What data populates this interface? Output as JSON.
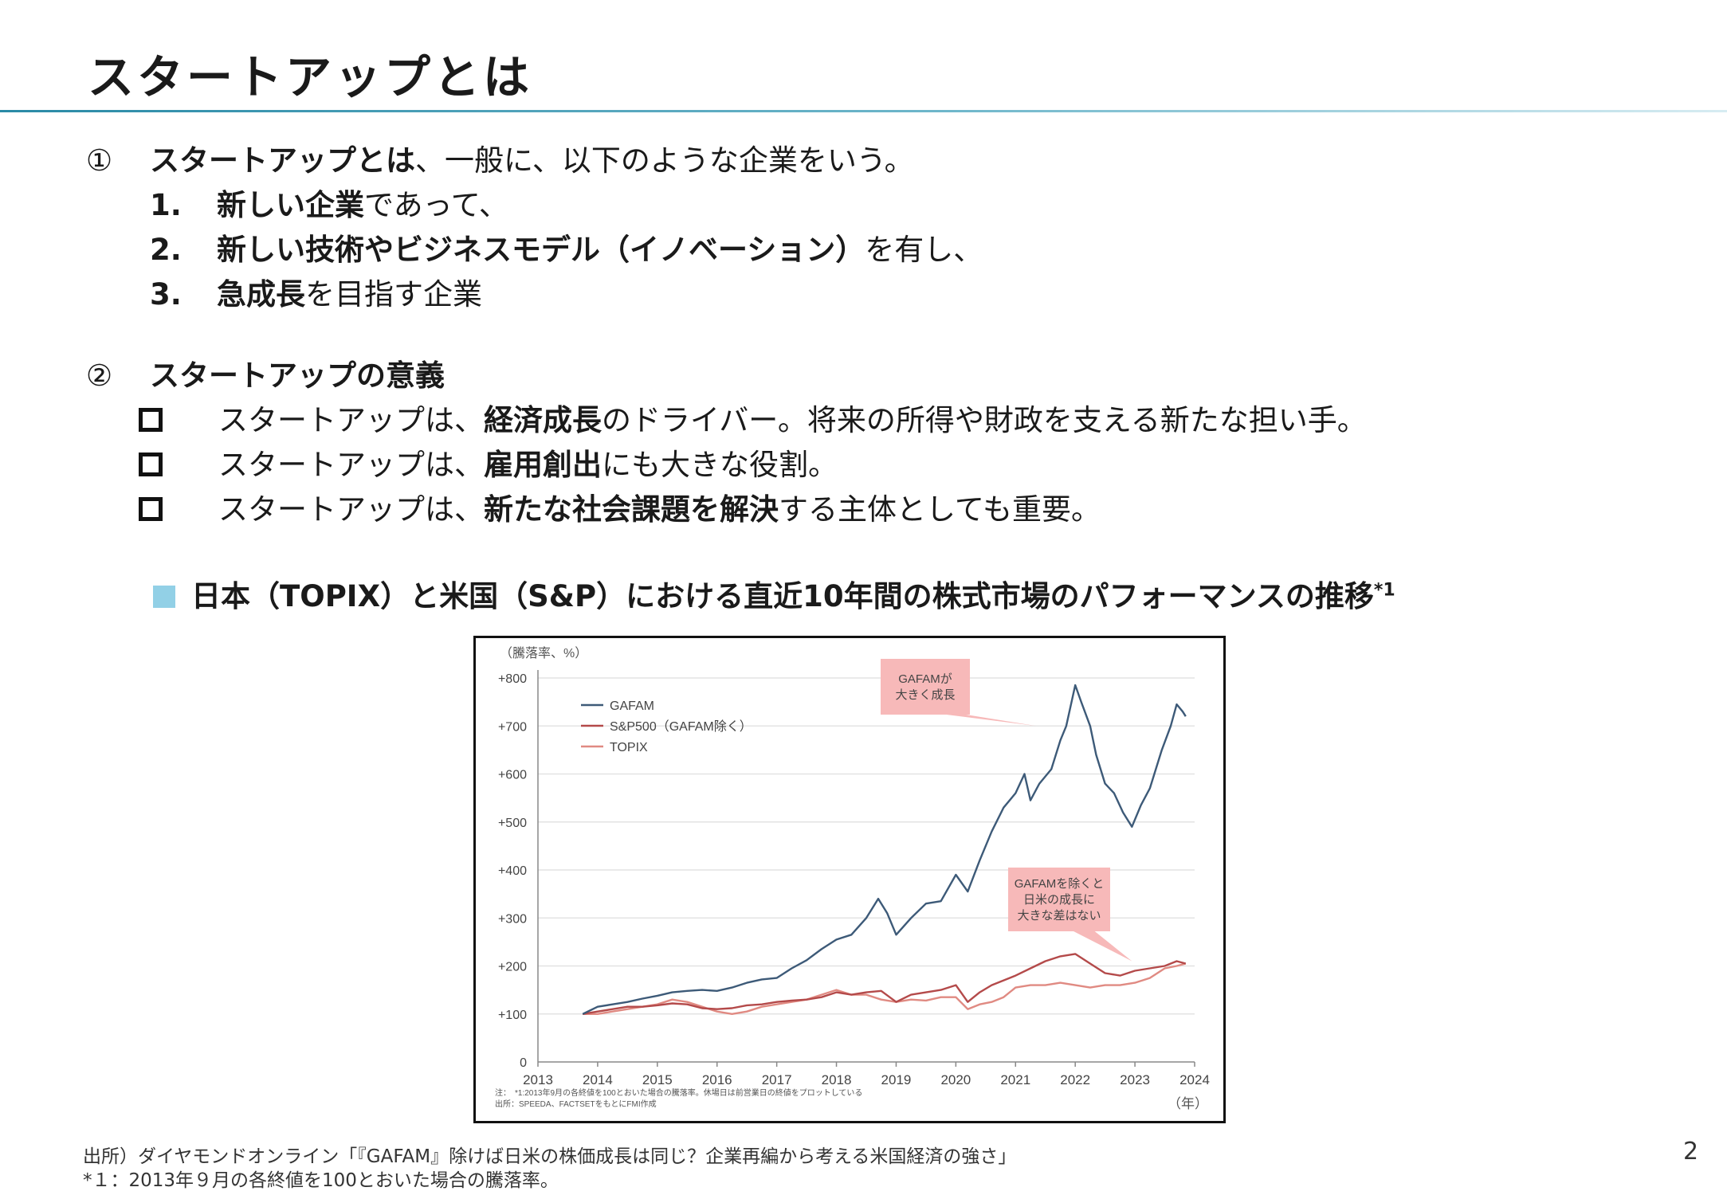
{
  "slide": {
    "title": "スタートアップとは",
    "page_number": "2"
  },
  "section1": {
    "number": "①",
    "heading_bold": "スタートアップとは",
    "heading_rest": "、一般に、以下のような企業をいう。",
    "items": [
      {
        "num": "1.",
        "bold": "新しい企業",
        "rest": "であって、"
      },
      {
        "num": "2.",
        "bold": "新しい技術やビジネスモデル（イノベーション）",
        "rest": "を有し、"
      },
      {
        "num": "3.",
        "bold": "急成長",
        "rest": "を目指す企業"
      }
    ]
  },
  "section2": {
    "number": "②",
    "heading": "スタートアップの意義",
    "bullets": [
      {
        "pre": "スタートアップは、",
        "bold": "経済成長",
        "post": "のドライバー。将来の所得や財政を支える新たな担い手。"
      },
      {
        "pre": "スタートアップは、",
        "bold": "雇用創出",
        "post": "にも大きな役割。"
      },
      {
        "pre": "スタートアップは、",
        "bold": "新たな社会課題を解決",
        "post": "する主体としても重要。"
      }
    ]
  },
  "chart_section": {
    "heading": "日本（TOPIX）と米国（S&P）における直近10年間の株式市場のパフォーマンスの推移",
    "heading_sup": "*1"
  },
  "colors": {
    "gafam": "#3d5a78",
    "sp500": "#b44a4a",
    "topix": "#e08a82",
    "annotation_bg": "#f7b9b9",
    "accent_rule": "#2a8aa6",
    "heading_square": "#92d0e6"
  },
  "chart_data": {
    "type": "line",
    "ylabel": "（騰落率、%）",
    "xlabel": "（年）",
    "ylim": [
      0,
      800
    ],
    "xlim": [
      2013,
      2024
    ],
    "y_ticks": [
      "0",
      "+100",
      "+200",
      "+300",
      "+400",
      "+500",
      "+600",
      "+700",
      "+800"
    ],
    "x_ticks": [
      "2013",
      "2014",
      "2015",
      "2016",
      "2017",
      "2018",
      "2019",
      "2020",
      "2021",
      "2022",
      "2023",
      "2024"
    ],
    "grid": true,
    "legend_position": "top-left",
    "series": [
      {
        "name": "GAFAM",
        "color": "#3d5a78",
        "points": [
          [
            2013.75,
            100
          ],
          [
            2014.0,
            115
          ],
          [
            2014.25,
            120
          ],
          [
            2014.5,
            125
          ],
          [
            2014.75,
            132
          ],
          [
            2015.0,
            138
          ],
          [
            2015.25,
            145
          ],
          [
            2015.5,
            148
          ],
          [
            2015.75,
            150
          ],
          [
            2016.0,
            148
          ],
          [
            2016.25,
            155
          ],
          [
            2016.5,
            165
          ],
          [
            2016.75,
            172
          ],
          [
            2017.0,
            175
          ],
          [
            2017.25,
            195
          ],
          [
            2017.5,
            212
          ],
          [
            2017.75,
            235
          ],
          [
            2018.0,
            255
          ],
          [
            2018.25,
            265
          ],
          [
            2018.5,
            300
          ],
          [
            2018.7,
            340
          ],
          [
            2018.85,
            310
          ],
          [
            2019.0,
            265
          ],
          [
            2019.25,
            300
          ],
          [
            2019.5,
            330
          ],
          [
            2019.75,
            335
          ],
          [
            2020.0,
            390
          ],
          [
            2020.2,
            355
          ],
          [
            2020.4,
            420
          ],
          [
            2020.6,
            480
          ],
          [
            2020.8,
            530
          ],
          [
            2021.0,
            560
          ],
          [
            2021.15,
            600
          ],
          [
            2021.25,
            545
          ],
          [
            2021.4,
            580
          ],
          [
            2021.6,
            610
          ],
          [
            2021.75,
            670
          ],
          [
            2021.85,
            700
          ],
          [
            2022.0,
            785
          ],
          [
            2022.1,
            750
          ],
          [
            2022.25,
            700
          ],
          [
            2022.35,
            640
          ],
          [
            2022.5,
            580
          ],
          [
            2022.65,
            560
          ],
          [
            2022.8,
            520
          ],
          [
            2022.95,
            490
          ],
          [
            2023.1,
            535
          ],
          [
            2023.25,
            570
          ],
          [
            2023.45,
            650
          ],
          [
            2023.6,
            700
          ],
          [
            2023.7,
            745
          ],
          [
            2023.8,
            730
          ],
          [
            2023.85,
            720
          ]
        ]
      },
      {
        "name": "S&P500（GAFAM除く）",
        "color": "#b44a4a",
        "points": [
          [
            2013.75,
            100
          ],
          [
            2014.0,
            105
          ],
          [
            2014.25,
            110
          ],
          [
            2014.5,
            115
          ],
          [
            2014.75,
            115
          ],
          [
            2015.0,
            118
          ],
          [
            2015.25,
            122
          ],
          [
            2015.5,
            120
          ],
          [
            2015.75,
            112
          ],
          [
            2016.0,
            110
          ],
          [
            2016.25,
            112
          ],
          [
            2016.5,
            118
          ],
          [
            2016.75,
            120
          ],
          [
            2017.0,
            125
          ],
          [
            2017.25,
            128
          ],
          [
            2017.5,
            130
          ],
          [
            2017.75,
            135
          ],
          [
            2018.0,
            145
          ],
          [
            2018.25,
            140
          ],
          [
            2018.5,
            145
          ],
          [
            2018.75,
            148
          ],
          [
            2019.0,
            125
          ],
          [
            2019.25,
            140
          ],
          [
            2019.5,
            145
          ],
          [
            2019.75,
            150
          ],
          [
            2020.0,
            160
          ],
          [
            2020.2,
            125
          ],
          [
            2020.4,
            145
          ],
          [
            2020.6,
            160
          ],
          [
            2020.8,
            170
          ],
          [
            2021.0,
            180
          ],
          [
            2021.25,
            195
          ],
          [
            2021.5,
            210
          ],
          [
            2021.75,
            220
          ],
          [
            2022.0,
            225
          ],
          [
            2022.25,
            205
          ],
          [
            2022.5,
            185
          ],
          [
            2022.75,
            180
          ],
          [
            2023.0,
            190
          ],
          [
            2023.25,
            195
          ],
          [
            2023.5,
            200
          ],
          [
            2023.7,
            210
          ],
          [
            2023.85,
            205
          ]
        ]
      },
      {
        "name": "TOPIX",
        "color": "#e08a82",
        "points": [
          [
            2013.75,
            100
          ],
          [
            2014.0,
            100
          ],
          [
            2014.25,
            105
          ],
          [
            2014.5,
            110
          ],
          [
            2014.75,
            115
          ],
          [
            2015.0,
            120
          ],
          [
            2015.25,
            130
          ],
          [
            2015.5,
            125
          ],
          [
            2015.75,
            115
          ],
          [
            2016.0,
            105
          ],
          [
            2016.25,
            100
          ],
          [
            2016.5,
            105
          ],
          [
            2016.75,
            115
          ],
          [
            2017.0,
            120
          ],
          [
            2017.25,
            125
          ],
          [
            2017.5,
            130
          ],
          [
            2017.75,
            140
          ],
          [
            2018.0,
            150
          ],
          [
            2018.25,
            140
          ],
          [
            2018.5,
            140
          ],
          [
            2018.75,
            130
          ],
          [
            2019.0,
            125
          ],
          [
            2019.25,
            130
          ],
          [
            2019.5,
            128
          ],
          [
            2019.75,
            135
          ],
          [
            2020.0,
            135
          ],
          [
            2020.2,
            110
          ],
          [
            2020.4,
            120
          ],
          [
            2020.6,
            125
          ],
          [
            2020.8,
            135
          ],
          [
            2021.0,
            155
          ],
          [
            2021.25,
            160
          ],
          [
            2021.5,
            160
          ],
          [
            2021.75,
            165
          ],
          [
            2022.0,
            160
          ],
          [
            2022.25,
            155
          ],
          [
            2022.5,
            160
          ],
          [
            2022.75,
            160
          ],
          [
            2023.0,
            165
          ],
          [
            2023.25,
            175
          ],
          [
            2023.5,
            195
          ],
          [
            2023.7,
            200
          ],
          [
            2023.85,
            205
          ]
        ]
      }
    ],
    "annotations": [
      {
        "lines": [
          "GAFAMが",
          "大きく成長"
        ],
        "pointer": [
          2021.35,
          700
        ]
      },
      {
        "lines": [
          "GAFAMを除くと",
          "日米の成長に",
          "大きな差はない"
        ],
        "pointer": [
          2022.95,
          210
        ]
      }
    ],
    "notes": [
      "注：　*1:2013年9月の各終値を100とおいた場合の騰落率。休場日は前営業日の終値をプロットしている",
      "出所：SPEEDA、FACTSETをもとにFMI作成"
    ]
  },
  "footer": {
    "source": "出所）ダイヤモンドオンライン「『GAFAM』除けば日米の株価成長は同じ？企業再編から考える米国経済の強さ」",
    "footnote": "*１：2013年９月の各終値を100とおいた場合の騰落率。"
  }
}
